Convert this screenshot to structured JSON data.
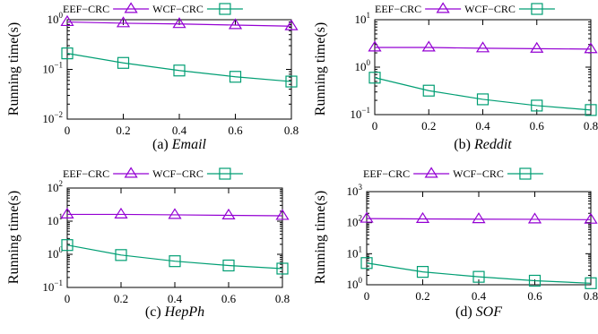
{
  "colors": {
    "eef": "#9400d3",
    "wcf": "#009e73",
    "axis": "#000000"
  },
  "chart_data": [
    {
      "type": "line",
      "caption_prefix": "(a) ",
      "caption_name": "Email",
      "ylabel": "Running time(s)",
      "yscale": "log",
      "ylim": [
        0.01,
        1
      ],
      "y_tick_exponents": [
        -2,
        -1,
        0
      ],
      "x": [
        0,
        0.2,
        0.4,
        0.6,
        0.8
      ],
      "x_tick_labels": [
        "0",
        "0.2",
        "0.4",
        "0.6",
        "0.8"
      ],
      "xlim": [
        0,
        0.8
      ],
      "legend_position": "top",
      "series": [
        {
          "name": "EEF−CRC",
          "marker": "triangle",
          "values": [
            0.9,
            0.85,
            0.82,
            0.78,
            0.74
          ]
        },
        {
          "name": "WCF−CRC",
          "marker": "square",
          "values": [
            0.21,
            0.135,
            0.095,
            0.071,
            0.057
          ]
        }
      ]
    },
    {
      "type": "line",
      "caption_prefix": "(b) ",
      "caption_name": "Reddit",
      "ylabel": "Running time(s)",
      "yscale": "log",
      "ylim": [
        0.1,
        10
      ],
      "y_tick_exponents": [
        -1,
        0,
        1
      ],
      "x": [
        0,
        0.2,
        0.4,
        0.6,
        0.8
      ],
      "x_tick_labels": [
        "0",
        "0.2",
        "0.4",
        "0.6",
        "0.8"
      ],
      "xlim": [
        0,
        0.8
      ],
      "legend_position": "top",
      "series": [
        {
          "name": "EEF−CRC",
          "marker": "triangle",
          "values": [
            2.6,
            2.6,
            2.5,
            2.45,
            2.4
          ]
        },
        {
          "name": "WCF−CRC",
          "marker": "square",
          "values": [
            0.6,
            0.32,
            0.21,
            0.155,
            0.125
          ]
        }
      ]
    },
    {
      "type": "line",
      "caption_prefix": "(c) ",
      "caption_name": "HepPh",
      "ylabel": "Running time(s)",
      "yscale": "log",
      "ylim": [
        0.1,
        100
      ],
      "y_tick_exponents": [
        -1,
        0,
        1,
        2
      ],
      "x": [
        0,
        0.2,
        0.4,
        0.6,
        0.8
      ],
      "x_tick_labels": [
        "0",
        "0.2",
        "0.4",
        "0.6",
        "0.8"
      ],
      "xlim": [
        0,
        0.8
      ],
      "legend_position": "top",
      "series": [
        {
          "name": "EEF−CRC",
          "marker": "triangle",
          "values": [
            16,
            16,
            15.5,
            15,
            14.5
          ]
        },
        {
          "name": "WCF−CRC",
          "marker": "square",
          "values": [
            1.9,
            0.95,
            0.62,
            0.46,
            0.37
          ]
        }
      ]
    },
    {
      "type": "line",
      "caption_prefix": "(d) ",
      "caption_name": "SOF",
      "ylabel": "Running time(s)",
      "yscale": "log",
      "ylim": [
        1,
        1000
      ],
      "y_tick_exponents": [
        0,
        1,
        2,
        3
      ],
      "x": [
        0,
        0.2,
        0.4,
        0.6,
        0.8
      ],
      "x_tick_labels": [
        "0",
        "0.2",
        "0.4",
        "0.6",
        "0.8"
      ],
      "xlim": [
        0,
        0.8
      ],
      "legend_position": "top",
      "series": [
        {
          "name": "EEF−CRC",
          "marker": "triangle",
          "values": [
            135,
            132,
            130,
            128,
            125
          ]
        },
        {
          "name": "WCF−CRC",
          "marker": "square",
          "values": [
            5,
            2.6,
            1.8,
            1.35,
            1.12
          ]
        }
      ]
    }
  ]
}
